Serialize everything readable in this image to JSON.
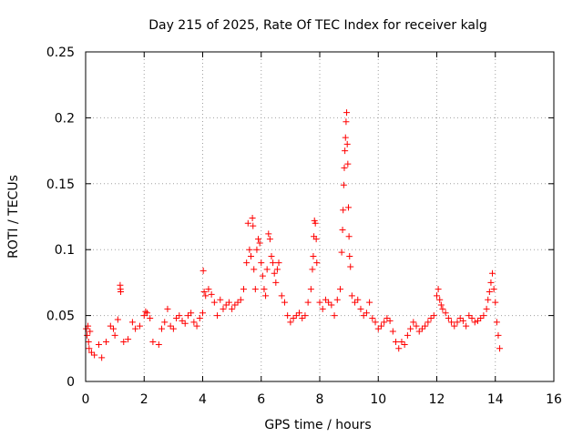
{
  "chart_data": {
    "type": "scatter",
    "title": "Day 215 of 2025, Rate Of TEC Index for receiver kalg",
    "xlabel": "GPS time / hours",
    "ylabel": "ROTI / TECUs",
    "xlim": [
      0,
      16
    ],
    "ylim": [
      0,
      0.25
    ],
    "x_ticks": [
      0,
      2,
      4,
      6,
      8,
      10,
      12,
      14,
      16
    ],
    "y_ticks": [
      0,
      0.05,
      0.1,
      0.15,
      0.2,
      0.25
    ],
    "x_tick_labels": [
      "0",
      "2",
      "4",
      "6",
      "8",
      "10",
      "12",
      "14",
      "16"
    ],
    "y_tick_labels": [
      "0",
      "0.05",
      "0.1",
      "0.15",
      "0.2",
      "0.25"
    ],
    "grid": true,
    "marker": "+",
    "marker_color": "#ff0000",
    "series": [
      {
        "name": "ROTI",
        "points": [
          [
            0.02,
            0.04
          ],
          [
            0.05,
            0.035
          ],
          [
            0.08,
            0.042
          ],
          [
            0.1,
            0.03
          ],
          [
            0.12,
            0.025
          ],
          [
            0.15,
            0.038
          ],
          [
            0.2,
            0.022
          ],
          [
            0.3,
            0.02
          ],
          [
            0.45,
            0.028
          ],
          [
            0.55,
            0.018
          ],
          [
            0.7,
            0.03
          ],
          [
            0.85,
            0.042
          ],
          [
            0.95,
            0.04
          ],
          [
            1.0,
            0.035
          ],
          [
            1.1,
            0.047
          ],
          [
            1.18,
            0.073
          ],
          [
            1.19,
            0.07
          ],
          [
            1.2,
            0.068
          ],
          [
            1.3,
            0.03
          ],
          [
            1.45,
            0.032
          ],
          [
            1.6,
            0.045
          ],
          [
            1.7,
            0.04
          ],
          [
            1.85,
            0.042
          ],
          [
            2.0,
            0.05
          ],
          [
            2.05,
            0.053
          ],
          [
            2.1,
            0.052
          ],
          [
            2.2,
            0.048
          ],
          [
            2.3,
            0.03
          ],
          [
            2.5,
            0.028
          ],
          [
            2.6,
            0.04
          ],
          [
            2.7,
            0.045
          ],
          [
            2.8,
            0.055
          ],
          [
            2.9,
            0.042
          ],
          [
            3.0,
            0.04
          ],
          [
            3.1,
            0.048
          ],
          [
            3.2,
            0.05
          ],
          [
            3.3,
            0.046
          ],
          [
            3.4,
            0.044
          ],
          [
            3.5,
            0.05
          ],
          [
            3.6,
            0.052
          ],
          [
            3.7,
            0.045
          ],
          [
            3.8,
            0.042
          ],
          [
            3.9,
            0.048
          ],
          [
            4.0,
            0.052
          ],
          [
            4.02,
            0.084
          ],
          [
            4.05,
            0.068
          ],
          [
            4.1,
            0.065
          ],
          [
            4.2,
            0.07
          ],
          [
            4.3,
            0.066
          ],
          [
            4.4,
            0.06
          ],
          [
            4.5,
            0.05
          ],
          [
            4.6,
            0.062
          ],
          [
            4.7,
            0.055
          ],
          [
            4.8,
            0.058
          ],
          [
            4.9,
            0.06
          ],
          [
            5.0,
            0.055
          ],
          [
            5.1,
            0.058
          ],
          [
            5.2,
            0.06
          ],
          [
            5.3,
            0.062
          ],
          [
            5.4,
            0.07
          ],
          [
            5.5,
            0.09
          ],
          [
            5.55,
            0.12
          ],
          [
            5.6,
            0.1
          ],
          [
            5.65,
            0.095
          ],
          [
            5.7,
            0.124
          ],
          [
            5.72,
            0.118
          ],
          [
            5.75,
            0.085
          ],
          [
            5.8,
            0.07
          ],
          [
            5.85,
            0.1
          ],
          [
            5.9,
            0.108
          ],
          [
            5.95,
            0.105
          ],
          [
            6.0,
            0.09
          ],
          [
            6.05,
            0.08
          ],
          [
            6.1,
            0.07
          ],
          [
            6.15,
            0.065
          ],
          [
            6.2,
            0.085
          ],
          [
            6.25,
            0.112
          ],
          [
            6.3,
            0.108
          ],
          [
            6.35,
            0.095
          ],
          [
            6.4,
            0.09
          ],
          [
            6.45,
            0.082
          ],
          [
            6.5,
            0.075
          ],
          [
            6.55,
            0.085
          ],
          [
            6.6,
            0.09
          ],
          [
            6.7,
            0.065
          ],
          [
            6.8,
            0.06
          ],
          [
            6.9,
            0.05
          ],
          [
            7.0,
            0.045
          ],
          [
            7.1,
            0.048
          ],
          [
            7.2,
            0.05
          ],
          [
            7.3,
            0.052
          ],
          [
            7.4,
            0.048
          ],
          [
            7.5,
            0.05
          ],
          [
            7.6,
            0.06
          ],
          [
            7.7,
            0.07
          ],
          [
            7.75,
            0.085
          ],
          [
            7.78,
            0.095
          ],
          [
            7.8,
            0.11
          ],
          [
            7.82,
            0.122
          ],
          [
            7.85,
            0.12
          ],
          [
            7.88,
            0.108
          ],
          [
            7.9,
            0.09
          ],
          [
            8.0,
            0.06
          ],
          [
            8.1,
            0.055
          ],
          [
            8.2,
            0.062
          ],
          [
            8.3,
            0.06
          ],
          [
            8.4,
            0.058
          ],
          [
            8.5,
            0.05
          ],
          [
            8.6,
            0.062
          ],
          [
            8.7,
            0.07
          ],
          [
            8.75,
            0.098
          ],
          [
            8.78,
            0.115
          ],
          [
            8.8,
            0.13
          ],
          [
            8.82,
            0.149
          ],
          [
            8.84,
            0.162
          ],
          [
            8.86,
            0.175
          ],
          [
            8.88,
            0.185
          ],
          [
            8.9,
            0.197
          ],
          [
            8.92,
            0.204
          ],
          [
            8.94,
            0.18
          ],
          [
            8.96,
            0.165
          ],
          [
            8.98,
            0.132
          ],
          [
            9.0,
            0.11
          ],
          [
            9.02,
            0.095
          ],
          [
            9.05,
            0.087
          ],
          [
            9.1,
            0.065
          ],
          [
            9.2,
            0.06
          ],
          [
            9.3,
            0.062
          ],
          [
            9.4,
            0.055
          ],
          [
            9.5,
            0.05
          ],
          [
            9.6,
            0.052
          ],
          [
            9.7,
            0.06
          ],
          [
            9.8,
            0.048
          ],
          [
            9.9,
            0.045
          ],
          [
            10.0,
            0.04
          ],
          [
            10.1,
            0.042
          ],
          [
            10.2,
            0.045
          ],
          [
            10.3,
            0.048
          ],
          [
            10.4,
            0.046
          ],
          [
            10.5,
            0.038
          ],
          [
            10.6,
            0.03
          ],
          [
            10.7,
            0.025
          ],
          [
            10.8,
            0.03
          ],
          [
            10.9,
            0.028
          ],
          [
            11.0,
            0.035
          ],
          [
            11.1,
            0.04
          ],
          [
            11.2,
            0.045
          ],
          [
            11.3,
            0.042
          ],
          [
            11.4,
            0.038
          ],
          [
            11.5,
            0.04
          ],
          [
            11.6,
            0.042
          ],
          [
            11.7,
            0.045
          ],
          [
            11.8,
            0.048
          ],
          [
            11.9,
            0.05
          ],
          [
            12.0,
            0.065
          ],
          [
            12.05,
            0.07
          ],
          [
            12.1,
            0.062
          ],
          [
            12.15,
            0.058
          ],
          [
            12.2,
            0.055
          ],
          [
            12.3,
            0.052
          ],
          [
            12.4,
            0.048
          ],
          [
            12.5,
            0.045
          ],
          [
            12.6,
            0.042
          ],
          [
            12.7,
            0.045
          ],
          [
            12.8,
            0.048
          ],
          [
            12.9,
            0.046
          ],
          [
            13.0,
            0.042
          ],
          [
            13.1,
            0.05
          ],
          [
            13.2,
            0.048
          ],
          [
            13.3,
            0.045
          ],
          [
            13.4,
            0.046
          ],
          [
            13.5,
            0.048
          ],
          [
            13.6,
            0.05
          ],
          [
            13.7,
            0.055
          ],
          [
            13.75,
            0.062
          ],
          [
            13.8,
            0.068
          ],
          [
            13.85,
            0.075
          ],
          [
            13.9,
            0.082
          ],
          [
            13.95,
            0.07
          ],
          [
            14.0,
            0.06
          ],
          [
            14.05,
            0.045
          ],
          [
            14.1,
            0.035
          ],
          [
            14.15,
            0.025
          ]
        ]
      }
    ]
  }
}
